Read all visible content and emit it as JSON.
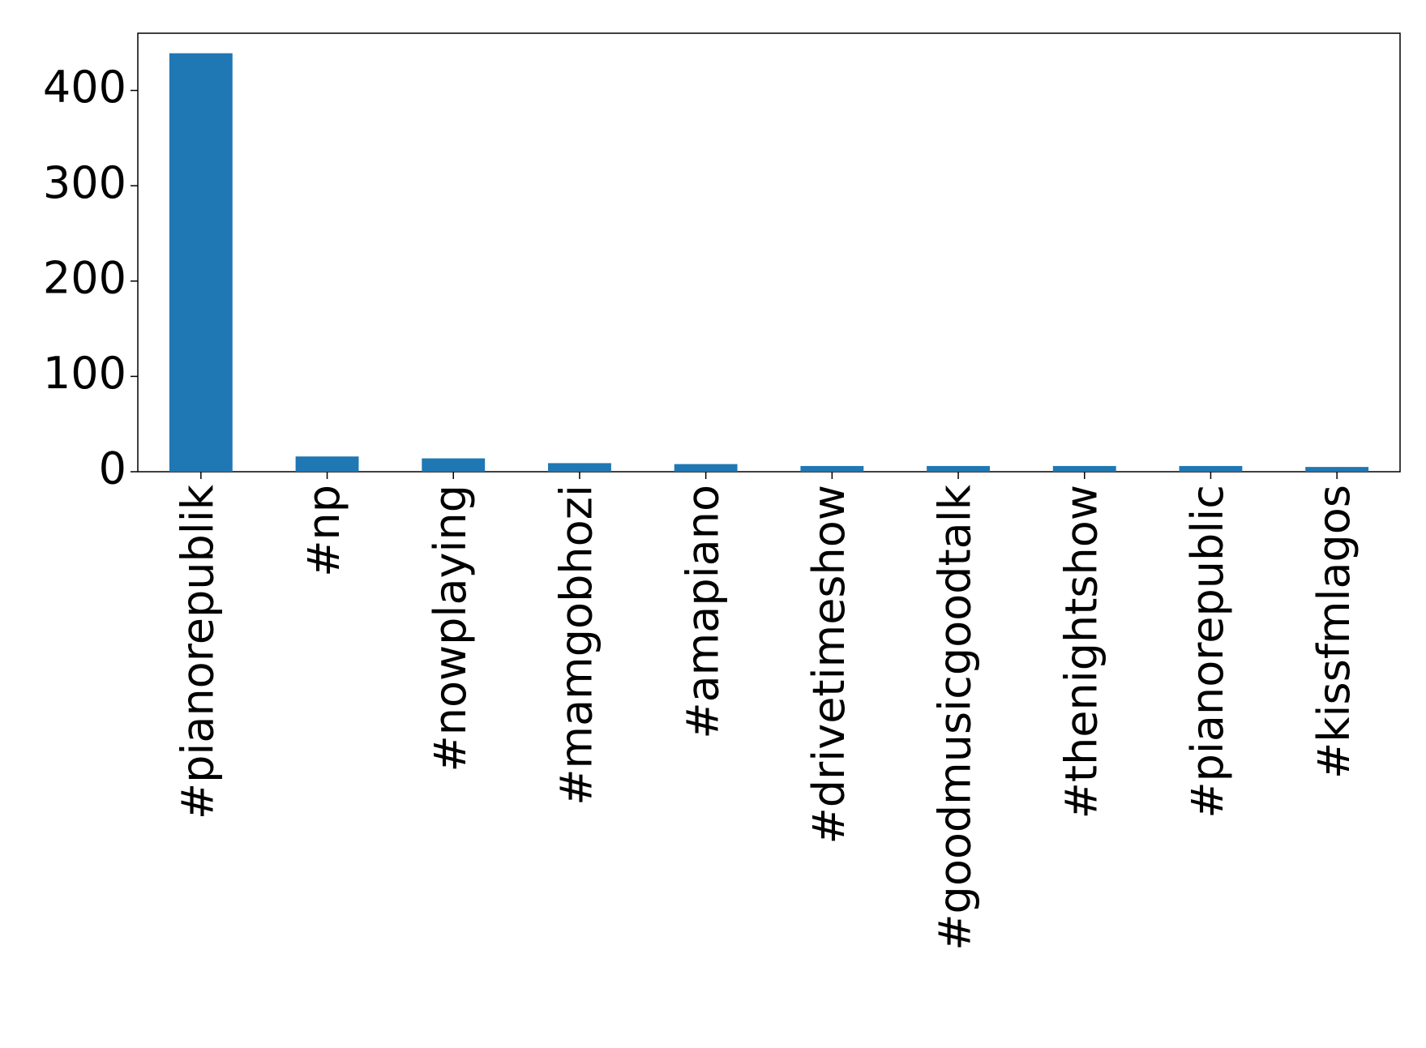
{
  "chart_data": {
    "type": "bar",
    "categories": [
      "#pianorepublik",
      "#np",
      "#nowplaying",
      "#mamgobhozi",
      "#amapiano",
      "#drivetimeshow",
      "#goodmusicgoodtalk",
      "#thenightshow",
      "#pianorepublic",
      "#kissfmlagos"
    ],
    "values": [
      439,
      16,
      14,
      9,
      8,
      6,
      6,
      6,
      6,
      5
    ],
    "color": "#1f77b4",
    "ylim": [
      0,
      460
    ],
    "yticks": [
      0,
      100,
      200,
      300,
      400
    ],
    "grid": false
  }
}
